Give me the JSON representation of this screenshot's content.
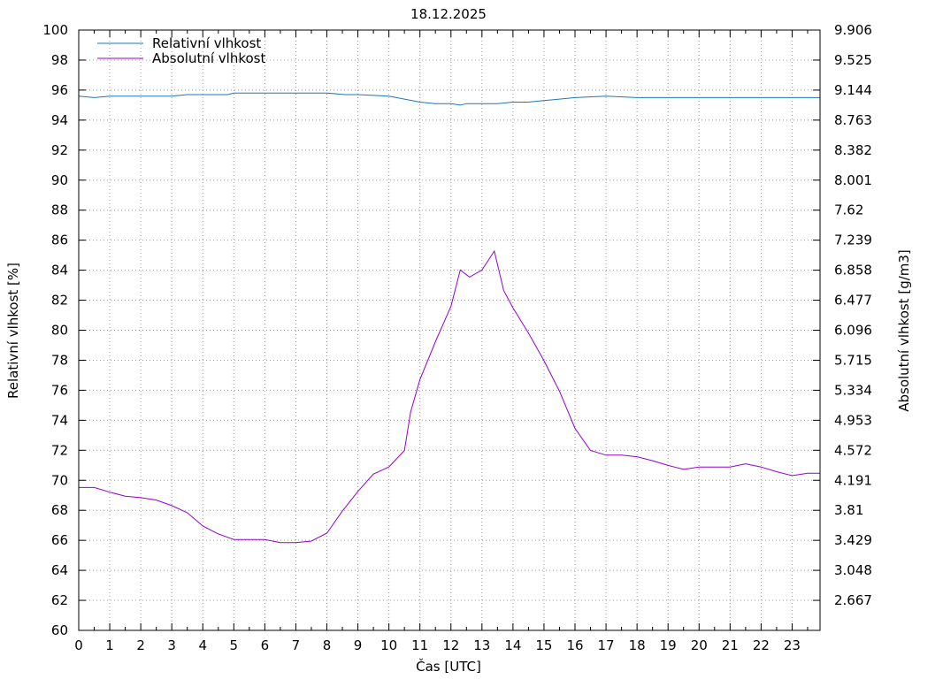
{
  "chart_data": {
    "type": "line",
    "title": "18.12.2025",
    "xlabel": "Čas [UTC]",
    "ylabel": "Relativní vlhkost [%]",
    "y2label": "Absolutní vlhkost [g/m3]",
    "xlim": [
      0,
      23.9
    ],
    "ylim": [
      60,
      100
    ],
    "y2lim": [
      2.286,
      9.906
    ],
    "grid": true,
    "legend_position": "top-left",
    "x_ticks": [
      "0",
      "1",
      "2",
      "3",
      "4",
      "5",
      "6",
      "7",
      "8",
      "9",
      "10",
      "11",
      "12",
      "13",
      "14",
      "15",
      "16",
      "17",
      "18",
      "19",
      "20",
      "21",
      "22",
      "23"
    ],
    "y_ticks": [
      "60",
      "62",
      "64",
      "66",
      "68",
      "70",
      "72",
      "74",
      "76",
      "78",
      "80",
      "82",
      "84",
      "86",
      "88",
      "90",
      "92",
      "94",
      "96",
      "98",
      "100"
    ],
    "y2_ticks": [
      "2.667",
      "3.048",
      "3.429",
      "3.81",
      "4.191",
      "4.572",
      "4.953",
      "5.334",
      "5.715",
      "6.096",
      "6.477",
      "6.858",
      "7.239",
      "7.62",
      "8.001",
      "8.382",
      "8.763",
      "9.144",
      "9.525",
      "9.906"
    ],
    "series": [
      {
        "name": "Relativní vlhkost",
        "axis": "left",
        "color": "#1f77b4",
        "x": [
          0,
          0.5,
          1,
          2,
          3,
          3.5,
          4,
          4.8,
          5,
          6,
          7,
          8,
          8.6,
          9,
          10,
          10.5,
          11,
          11.5,
          12,
          12.3,
          12.5,
          13,
          13.5,
          14,
          14.5,
          15,
          15.5,
          16,
          17,
          18,
          19,
          20,
          21,
          22,
          23,
          23.9
        ],
        "y": [
          95.6,
          95.5,
          95.6,
          95.6,
          95.6,
          95.7,
          95.7,
          95.7,
          95.8,
          95.8,
          95.8,
          95.8,
          95.7,
          95.7,
          95.6,
          95.4,
          95.2,
          95.1,
          95.1,
          95.0,
          95.1,
          95.1,
          95.1,
          95.2,
          95.2,
          95.3,
          95.4,
          95.5,
          95.6,
          95.5,
          95.5,
          95.5,
          95.5,
          95.5,
          95.5,
          95.5
        ]
      },
      {
        "name": "Absolutní vlhkost",
        "axis": "right",
        "color": "#9400d3",
        "x": [
          0,
          0.5,
          1,
          1.5,
          2,
          2.5,
          3,
          3.5,
          4,
          4.5,
          5,
          5.5,
          6,
          6.5,
          7,
          7.5,
          8,
          8.5,
          9,
          9.5,
          10,
          10.5,
          10.7,
          11,
          11.5,
          12,
          12.3,
          12.6,
          13,
          13.4,
          13.7,
          14,
          14.5,
          15,
          15.5,
          16,
          16.5,
          17,
          17.5,
          18,
          18.5,
          19,
          19.5,
          20,
          20.5,
          21,
          21.5,
          22,
          22.5,
          23,
          23.5,
          23.9
        ],
        "y": [
          4.1,
          4.1,
          4.04,
          3.99,
          3.97,
          3.94,
          3.87,
          3.78,
          3.61,
          3.51,
          3.44,
          3.44,
          3.44,
          3.4,
          3.4,
          3.42,
          3.52,
          3.8,
          4.05,
          4.27,
          4.36,
          4.57,
          5.06,
          5.47,
          5.95,
          6.4,
          6.86,
          6.77,
          6.86,
          7.1,
          6.6,
          6.38,
          6.06,
          5.71,
          5.32,
          4.85,
          4.57,
          4.51,
          4.51,
          4.49,
          4.44,
          4.38,
          4.33,
          4.36,
          4.36,
          4.36,
          4.4,
          4.36,
          4.3,
          4.25,
          4.28,
          4.28
        ]
      }
    ]
  }
}
